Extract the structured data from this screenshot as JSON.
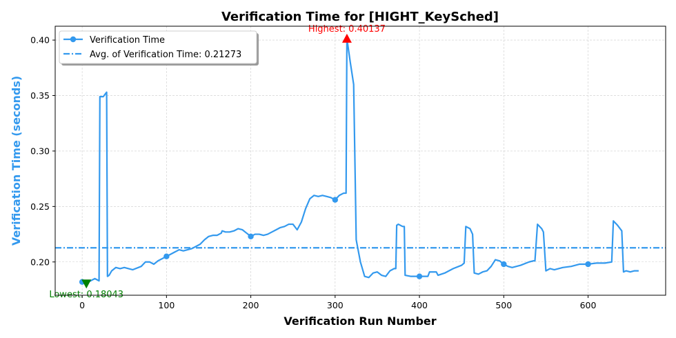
{
  "chart_data": {
    "type": "line",
    "title": "Verification Time for [HIGHT_KeySched]",
    "xlabel": "Verification Run Number",
    "ylabel": "Verification Time (seconds)",
    "xlim": [
      -32,
      692
    ],
    "ylim": [
      0.17,
      0.4125
    ],
    "xticks": [
      0,
      100,
      200,
      300,
      400,
      500,
      600
    ],
    "yticks": [
      0.2,
      0.25,
      0.3,
      0.35,
      0.4
    ],
    "ytick_labels": [
      "0.20",
      "0.25",
      "0.30",
      "0.35",
      "0.40"
    ],
    "grid": true,
    "legend_position": "top-left",
    "line_color": "#3399ee",
    "series": [
      {
        "name": "Verification Time",
        "marker_every": 100,
        "x": [
          0,
          5,
          10,
          15,
          20,
          21,
          25,
          28,
          29,
          30,
          32,
          35,
          40,
          45,
          50,
          60,
          70,
          75,
          80,
          85,
          90,
          95,
          100,
          105,
          110,
          115,
          120,
          125,
          130,
          135,
          140,
          145,
          150,
          155,
          160,
          165,
          166,
          170,
          175,
          180,
          185,
          190,
          195,
          200,
          205,
          210,
          215,
          220,
          225,
          230,
          235,
          240,
          245,
          250,
          255,
          260,
          265,
          270,
          275,
          280,
          285,
          290,
          295,
          300,
          305,
          310,
          313,
          314,
          318,
          322,
          325,
          326,
          330,
          335,
          340,
          345,
          350,
          355,
          360,
          365,
          370,
          372,
          373,
          375,
          380,
          382,
          383,
          390,
          400,
          410,
          412,
          420,
          422,
          430,
          440,
          450,
          453,
          455,
          460,
          463,
          465,
          470,
          475,
          480,
          485,
          490,
          495,
          500,
          505,
          510,
          520,
          530,
          535,
          537,
          540,
          545,
          547,
          550,
          555,
          560,
          570,
          580,
          590,
          600,
          610,
          620,
          628,
          630,
          635,
          640,
          642,
          645,
          650,
          655,
          660
        ],
        "y": [
          0.182,
          0.181,
          0.183,
          0.185,
          0.183,
          0.349,
          0.349,
          0.352,
          0.353,
          0.187,
          0.188,
          0.192,
          0.195,
          0.194,
          0.195,
          0.193,
          0.196,
          0.2,
          0.2,
          0.198,
          0.201,
          0.203,
          0.205,
          0.207,
          0.209,
          0.211,
          0.21,
          0.211,
          0.212,
          0.214,
          0.216,
          0.22,
          0.223,
          0.224,
          0.224,
          0.226,
          0.228,
          0.227,
          0.227,
          0.228,
          0.23,
          0.229,
          0.226,
          0.223,
          0.225,
          0.225,
          0.224,
          0.225,
          0.227,
          0.229,
          0.231,
          0.232,
          0.234,
          0.234,
          0.229,
          0.236,
          0.248,
          0.257,
          0.26,
          0.259,
          0.26,
          0.259,
          0.258,
          0.256,
          0.26,
          0.262,
          0.262,
          0.4014,
          0.38,
          0.36,
          0.22,
          0.216,
          0.2,
          0.187,
          0.186,
          0.19,
          0.191,
          0.188,
          0.187,
          0.192,
          0.194,
          0.194,
          0.233,
          0.234,
          0.232,
          0.232,
          0.188,
          0.187,
          0.187,
          0.187,
          0.191,
          0.191,
          0.188,
          0.19,
          0.194,
          0.197,
          0.199,
          0.232,
          0.23,
          0.225,
          0.19,
          0.189,
          0.191,
          0.192,
          0.196,
          0.202,
          0.201,
          0.198,
          0.196,
          0.195,
          0.197,
          0.2,
          0.201,
          0.201,
          0.234,
          0.23,
          0.227,
          0.192,
          0.194,
          0.193,
          0.195,
          0.196,
          0.198,
          0.198,
          0.199,
          0.199,
          0.2,
          0.237,
          0.233,
          0.228,
          0.191,
          0.192,
          0.191,
          0.192,
          0.192
        ]
      }
    ],
    "average": {
      "label": "Avg. of Verification Time: 0.21273",
      "value": 0.21273
    },
    "highest": {
      "label": "Highest: 0.40137",
      "x": 314,
      "y": 0.40137,
      "color": "#ff0000"
    },
    "lowest": {
      "label": "Lowest: 0.18043",
      "x": 5,
      "y": 0.18043,
      "color": "#008000"
    }
  }
}
